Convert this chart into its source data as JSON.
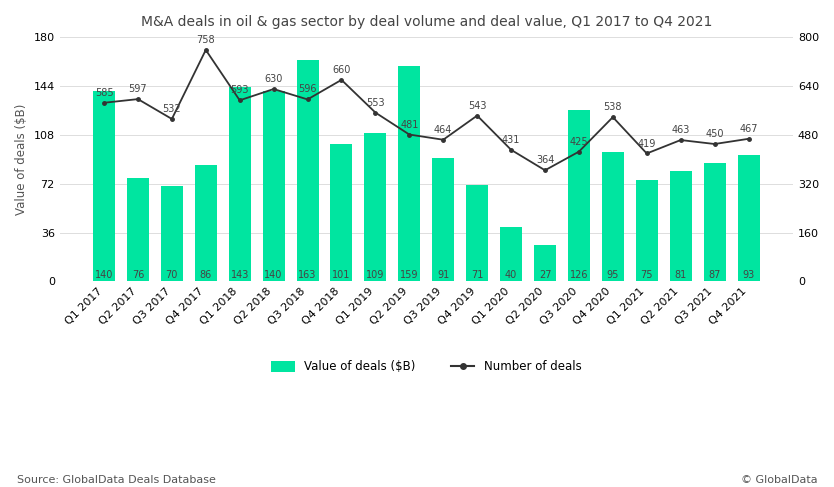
{
  "title": "M&A deals in oil & gas sector by deal volume and deal value, Q1 2017 to Q4 2021",
  "categories": [
    "Q1 2017",
    "Q2 2017",
    "Q3 2017",
    "Q4 2017",
    "Q1 2018",
    "Q2 2018",
    "Q3 2018",
    "Q4 2018",
    "Q1 2019",
    "Q2 2019",
    "Q3 2019",
    "Q4 2019",
    "Q1 2020",
    "Q2 2020",
    "Q3 2020",
    "Q4 2020",
    "Q1 2021",
    "Q2 2021",
    "Q3 2021",
    "Q4 2021"
  ],
  "bar_values": [
    140,
    76,
    70,
    86,
    143,
    140,
    163,
    101,
    109,
    159,
    91,
    71,
    40,
    27,
    126,
    95,
    75,
    81,
    87,
    93
  ],
  "bar_labels": [
    "140",
    "76",
    "70",
    "86",
    "143",
    "140",
    "163",
    "101",
    "109",
    "159",
    "91",
    "71",
    "40",
    "27",
    "126",
    "95",
    "75",
    "81",
    "87",
    "93"
  ],
  "line_values": [
    585,
    597,
    532,
    758,
    593,
    630,
    596,
    660,
    553,
    481,
    464,
    543,
    431,
    364,
    425,
    538,
    419,
    463,
    450,
    467
  ],
  "line_labels": [
    "585",
    "597",
    "532",
    "758",
    "593",
    "630",
    "596",
    "660",
    "553",
    "481",
    "464",
    "543",
    "431",
    "364",
    "425",
    "538",
    "419",
    "463",
    "450",
    "467"
  ],
  "bar_color": "#00e5a0",
  "line_color": "#333333",
  "ylabel_left": "Value of deals ($B)",
  "ylim_left": [
    0,
    180
  ],
  "ylim_right": [
    0,
    800
  ],
  "yticks_left": [
    0,
    36,
    72,
    108,
    144,
    180
  ],
  "yticks_right": [
    0,
    160,
    320,
    480,
    640,
    800
  ],
  "legend_bar": "Value of deals ($B)",
  "legend_line": "Number of deals",
  "source_text": "Source: GlobalData Deals Database",
  "copyright_text": "© GlobalData",
  "background_color": "#ffffff",
  "grid_color": "#dddddd",
  "title_fontsize": 10,
  "axis_label_fontsize": 8.5,
  "tick_fontsize": 8,
  "bar_label_fontsize": 7,
  "line_label_fontsize": 7,
  "legend_fontsize": 8.5
}
